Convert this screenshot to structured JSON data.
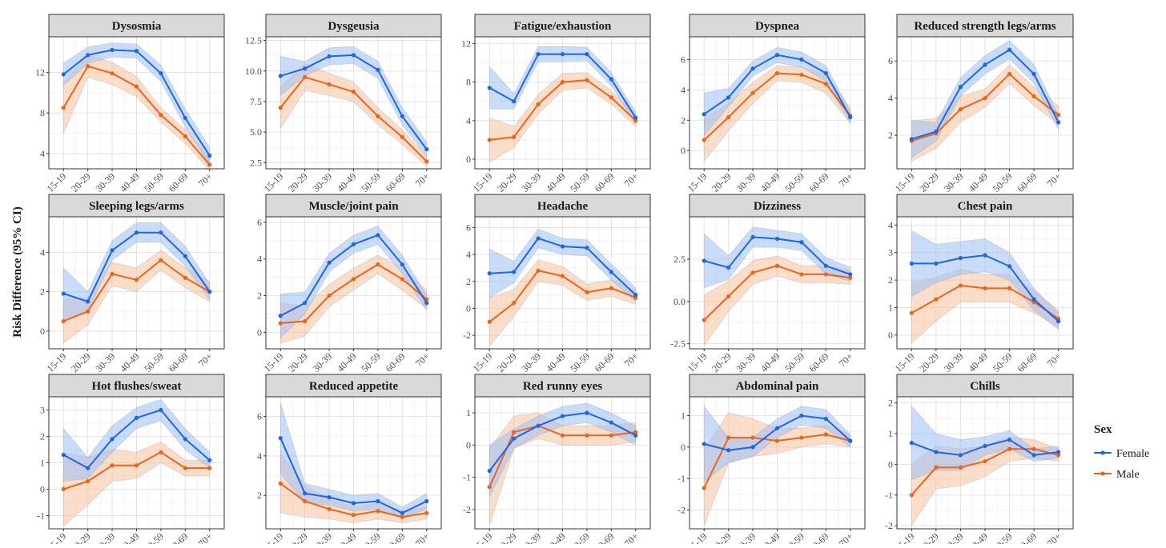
{
  "chart_data": {
    "type": "line",
    "ylabel": "Risk Difference (95% CI)",
    "categories": [
      "15-19",
      "20-29",
      "30-39",
      "40-49",
      "50-59",
      "60-69",
      "70+"
    ],
    "legend": {
      "title": "Sex",
      "placement": "right",
      "entries": [
        {
          "name": "Female",
          "color": "#1f66e0",
          "band_color": "#9dc0f5"
        },
        {
          "name": "Male",
          "color": "#e8651d",
          "band_color": "#f7c39f"
        }
      ]
    },
    "grid": true,
    "panels": [
      {
        "title": "Dysosmia",
        "ylim": [
          2.5,
          15.5
        ],
        "yticks": [
          4,
          8,
          12
        ],
        "female": {
          "values": [
            11.8,
            13.7,
            14.2,
            14.1,
            11.9,
            7.5,
            3.8
          ],
          "lower": [
            10.7,
            12.9,
            13.5,
            13.4,
            11.1,
            6.6,
            3.0
          ],
          "upper": [
            12.9,
            14.5,
            14.9,
            14.8,
            12.7,
            8.4,
            4.6
          ]
        },
        "male": {
          "values": [
            8.5,
            12.6,
            11.9,
            10.6,
            7.8,
            5.7,
            2.9
          ],
          "lower": [
            6.0,
            11.5,
            10.8,
            9.6,
            7.1,
            5.0,
            2.3
          ],
          "upper": [
            11.0,
            13.7,
            13.0,
            11.6,
            8.5,
            6.4,
            3.5
          ]
        }
      },
      {
        "title": "Dysgeusia",
        "ylim": [
          2.0,
          12.8
        ],
        "yticks": [
          2.5,
          5.0,
          7.5,
          10.0,
          12.5
        ],
        "female": {
          "values": [
            9.6,
            10.2,
            11.2,
            11.3,
            10.1,
            6.3,
            3.6
          ],
          "lower": [
            8.0,
            9.6,
            10.5,
            10.6,
            9.4,
            5.6,
            3.0
          ],
          "upper": [
            11.2,
            10.8,
            11.9,
            12.0,
            10.8,
            7.0,
            4.2
          ]
        },
        "male": {
          "values": [
            7.0,
            9.5,
            8.9,
            8.3,
            6.3,
            4.6,
            2.6
          ],
          "lower": [
            5.3,
            8.4,
            8.0,
            7.5,
            5.6,
            4.0,
            2.2
          ],
          "upper": [
            8.7,
            10.6,
            9.8,
            9.1,
            7.0,
            5.2,
            3.0
          ]
        }
      },
      {
        "title": "Fatigue/exhaustion",
        "ylim": [
          -1.0,
          12.7
        ],
        "yticks": [
          0,
          4,
          8,
          12
        ],
        "female": {
          "values": [
            7.4,
            6.0,
            10.9,
            10.9,
            10.9,
            8.3,
            4.3
          ],
          "lower": [
            5.2,
            5.2,
            10.1,
            10.1,
            10.2,
            7.6,
            3.7
          ],
          "upper": [
            9.6,
            6.8,
            11.7,
            11.7,
            11.6,
            9.0,
            4.9
          ]
        },
        "male": {
          "values": [
            2.0,
            2.3,
            5.7,
            8.0,
            8.2,
            6.4,
            4.0
          ],
          "lower": [
            -0.3,
            1.2,
            4.7,
            7.1,
            7.4,
            5.7,
            3.4
          ],
          "upper": [
            4.3,
            3.4,
            6.7,
            8.9,
            9.0,
            7.1,
            4.6
          ]
        }
      },
      {
        "title": "Dyspnea",
        "ylim": [
          -1.2,
          7.5
        ],
        "yticks": [
          0,
          2,
          4,
          6
        ],
        "female": {
          "values": [
            2.4,
            3.5,
            5.4,
            6.3,
            6.0,
            5.1,
            2.2
          ],
          "lower": [
            1.0,
            2.9,
            4.9,
            5.8,
            5.5,
            4.6,
            1.8
          ],
          "upper": [
            3.8,
            4.1,
            5.9,
            6.8,
            6.5,
            5.6,
            2.6
          ]
        },
        "male": {
          "values": [
            0.7,
            2.2,
            3.8,
            5.1,
            5.0,
            4.4,
            2.3
          ],
          "lower": [
            -0.7,
            1.3,
            3.1,
            4.6,
            4.5,
            3.8,
            1.8
          ],
          "upper": [
            2.1,
            3.1,
            4.5,
            5.6,
            5.5,
            5.0,
            2.8
          ]
        }
      },
      {
        "title": "Reduced strength legs/arms",
        "ylim": [
          0.2,
          7.3
        ],
        "yticks": [
          2,
          4,
          6
        ],
        "female": {
          "values": [
            1.8,
            2.2,
            4.6,
            5.8,
            6.6,
            5.3,
            2.7
          ],
          "lower": [
            0.8,
            1.7,
            4.1,
            5.3,
            6.1,
            4.8,
            2.3
          ],
          "upper": [
            2.8,
            2.7,
            5.1,
            6.3,
            7.1,
            5.8,
            3.1
          ]
        },
        "male": {
          "values": [
            1.7,
            2.1,
            3.4,
            4.0,
            5.3,
            4.1,
            3.1
          ],
          "lower": [
            0.6,
            1.3,
            2.7,
            3.5,
            4.8,
            3.6,
            2.6
          ],
          "upper": [
            2.8,
            2.9,
            4.1,
            4.5,
            5.8,
            4.6,
            3.6
          ]
        }
      },
      {
        "title": "Sleeping legs/arms",
        "ylim": [
          -0.9,
          5.8
        ],
        "yticks": [
          0,
          2,
          4
        ],
        "female": {
          "values": [
            1.9,
            1.5,
            4.1,
            5.0,
            5.0,
            3.8,
            2.0
          ],
          "lower": [
            0.6,
            1.0,
            3.6,
            4.5,
            4.5,
            3.3,
            1.6
          ],
          "upper": [
            3.2,
            2.0,
            4.6,
            5.5,
            5.5,
            4.3,
            2.4
          ]
        },
        "male": {
          "values": [
            0.5,
            1.0,
            2.9,
            2.6,
            3.6,
            2.7,
            2.0
          ],
          "lower": [
            -0.6,
            0.3,
            2.3,
            2.0,
            3.1,
            2.2,
            1.5
          ],
          "upper": [
            1.6,
            1.7,
            3.5,
            3.2,
            4.1,
            3.2,
            2.5
          ]
        }
      },
      {
        "title": "Muscle/joint pain",
        "ylim": [
          -0.9,
          6.3
        ],
        "yticks": [
          0,
          2,
          4,
          6
        ],
        "female": {
          "values": [
            0.9,
            1.6,
            3.8,
            4.8,
            5.3,
            3.7,
            1.6
          ],
          "lower": [
            -0.3,
            1.0,
            3.3,
            4.3,
            4.8,
            3.2,
            1.2
          ],
          "upper": [
            2.1,
            2.2,
            4.3,
            5.3,
            5.8,
            4.2,
            2.0
          ]
        },
        "male": {
          "values": [
            0.5,
            0.6,
            2.0,
            2.9,
            3.7,
            2.9,
            1.8
          ],
          "lower": [
            -0.6,
            -0.2,
            1.4,
            2.3,
            3.2,
            2.3,
            1.3
          ],
          "upper": [
            1.6,
            1.4,
            2.6,
            3.5,
            4.2,
            3.5,
            2.3
          ]
        }
      },
      {
        "title": "Headache",
        "ylim": [
          -3.0,
          6.8
        ],
        "yticks": [
          -2,
          0,
          2,
          4,
          6
        ],
        "female": {
          "values": [
            2.6,
            2.7,
            5.2,
            4.6,
            4.5,
            2.7,
            1.0
          ],
          "lower": [
            0.8,
            1.9,
            4.5,
            4.0,
            3.9,
            2.1,
            0.5
          ],
          "upper": [
            4.4,
            3.5,
            5.9,
            5.2,
            5.1,
            3.3,
            1.5
          ]
        },
        "male": {
          "values": [
            -1.0,
            0.4,
            2.8,
            2.4,
            1.2,
            1.5,
            0.8
          ],
          "lower": [
            -2.8,
            -0.6,
            2.0,
            1.7,
            0.6,
            0.9,
            0.3
          ],
          "upper": [
            0.8,
            1.4,
            3.6,
            3.1,
            1.8,
            2.1,
            1.3
          ]
        }
      },
      {
        "title": "Dizziness",
        "ylim": [
          -2.8,
          5.0
        ],
        "yticks": [
          -2.5,
          0.0,
          2.5
        ],
        "female": {
          "values": [
            2.4,
            2.0,
            3.8,
            3.7,
            3.5,
            2.1,
            1.6
          ],
          "lower": [
            0.8,
            1.3,
            3.2,
            3.2,
            3.0,
            1.6,
            1.2
          ],
          "upper": [
            4.0,
            2.7,
            4.4,
            4.2,
            4.0,
            2.6,
            2.0
          ]
        },
        "male": {
          "values": [
            -1.1,
            0.3,
            1.7,
            2.1,
            1.6,
            1.6,
            1.4
          ],
          "lower": [
            -2.6,
            -0.6,
            1.0,
            1.5,
            1.1,
            1.1,
            1.0
          ],
          "upper": [
            0.4,
            1.2,
            2.4,
            2.7,
            2.1,
            2.1,
            1.8
          ]
        }
      },
      {
        "title": "Chest pain",
        "ylim": [
          -0.5,
          4.3
        ],
        "yticks": [
          0,
          1,
          2,
          3,
          4
        ],
        "female": {
          "values": [
            2.6,
            2.6,
            2.8,
            2.9,
            2.5,
            1.3,
            0.5
          ],
          "lower": [
            1.4,
            1.9,
            2.2,
            2.3,
            2.0,
            0.9,
            0.2
          ],
          "upper": [
            3.8,
            3.3,
            3.4,
            3.5,
            3.0,
            1.7,
            0.8
          ]
        },
        "male": {
          "values": [
            0.8,
            1.3,
            1.8,
            1.7,
            1.7,
            1.2,
            0.6
          ],
          "lower": [
            -0.3,
            0.5,
            1.2,
            1.2,
            1.2,
            0.8,
            0.3
          ],
          "upper": [
            1.9,
            2.1,
            2.4,
            2.2,
            2.2,
            1.6,
            0.9
          ]
        }
      },
      {
        "title": "Hot flushes/sweat",
        "ylim": [
          -1.5,
          3.5
        ],
        "yticks": [
          -1,
          0,
          1,
          2,
          3
        ],
        "female": {
          "values": [
            1.3,
            0.8,
            1.9,
            2.7,
            3.0,
            1.9,
            1.1
          ],
          "lower": [
            0.3,
            0.4,
            1.4,
            2.3,
            2.6,
            1.5,
            0.8
          ],
          "upper": [
            2.3,
            1.2,
            2.4,
            3.1,
            3.4,
            2.3,
            1.4
          ]
        },
        "male": {
          "values": [
            0.0,
            0.3,
            0.9,
            0.9,
            1.4,
            0.8,
            0.8
          ],
          "lower": [
            -1.4,
            -0.6,
            0.3,
            0.4,
            1.0,
            0.5,
            0.5
          ],
          "upper": [
            1.4,
            1.2,
            1.5,
            1.4,
            1.8,
            1.1,
            1.1
          ]
        }
      },
      {
        "title": "Reduced appetite",
        "ylim": [
          0.3,
          7.0
        ],
        "yticks": [
          2,
          4,
          6
        ],
        "female": {
          "values": [
            4.9,
            2.1,
            1.9,
            1.6,
            1.7,
            1.1,
            1.7
          ],
          "lower": [
            3.1,
            1.6,
            1.5,
            1.2,
            1.3,
            0.8,
            1.3
          ],
          "upper": [
            6.7,
            2.6,
            2.3,
            2.0,
            2.1,
            1.4,
            2.1
          ]
        },
        "male": {
          "values": [
            2.6,
            1.7,
            1.3,
            1.0,
            1.2,
            0.9,
            1.1
          ],
          "lower": [
            1.1,
            0.9,
            0.8,
            0.6,
            0.8,
            0.6,
            0.8
          ],
          "upper": [
            4.1,
            2.5,
            1.8,
            1.4,
            1.6,
            1.2,
            1.4
          ]
        }
      },
      {
        "title": "Red runny eyes",
        "ylim": [
          -2.6,
          1.5
        ],
        "yticks": [
          -2,
          -1,
          0,
          1
        ],
        "female": {
          "values": [
            -0.8,
            0.2,
            0.6,
            0.9,
            1.0,
            0.7,
            0.3
          ],
          "lower": [
            -1.6,
            -0.1,
            0.3,
            0.6,
            0.7,
            0.4,
            0.0
          ],
          "upper": [
            0.0,
            0.5,
            0.9,
            1.2,
            1.3,
            1.0,
            0.6
          ]
        },
        "male": {
          "values": [
            -1.3,
            0.4,
            0.6,
            0.3,
            0.3,
            0.3,
            0.4
          ],
          "lower": [
            -2.5,
            -0.1,
            0.2,
            0.0,
            0.0,
            0.0,
            0.1
          ],
          "upper": [
            -0.1,
            0.9,
            1.0,
            0.6,
            0.6,
            0.6,
            0.7
          ]
        }
      },
      {
        "title": "Abdominal pain",
        "ylim": [
          -2.6,
          1.6
        ],
        "yticks": [
          -2,
          -1,
          0,
          1
        ],
        "female": {
          "values": [
            0.1,
            -0.1,
            0.0,
            0.6,
            1.0,
            0.9,
            0.2
          ],
          "lower": [
            -1.1,
            -0.5,
            -0.3,
            0.3,
            0.7,
            0.6,
            0.0
          ],
          "upper": [
            1.3,
            0.3,
            0.3,
            0.9,
            1.3,
            1.2,
            0.4
          ]
        },
        "male": {
          "values": [
            -1.3,
            0.3,
            0.3,
            0.2,
            0.3,
            0.4,
            0.2
          ],
          "lower": [
            -2.5,
            -0.5,
            -0.3,
            -0.2,
            0.0,
            0.1,
            0.0
          ],
          "upper": [
            -0.1,
            1.1,
            0.9,
            0.6,
            0.6,
            0.7,
            0.4
          ]
        }
      },
      {
        "title": "Chills",
        "ylim": [
          -2.1,
          2.2
        ],
        "yticks": [
          -2,
          -1,
          0,
          1,
          2
        ],
        "female": {
          "values": [
            0.7,
            0.4,
            0.3,
            0.6,
            0.8,
            0.3,
            0.4
          ],
          "lower": [
            -0.5,
            -0.2,
            -0.2,
            0.3,
            0.5,
            0.1,
            0.2
          ],
          "upper": [
            1.9,
            1.0,
            0.8,
            0.9,
            1.1,
            0.5,
            0.6
          ]
        },
        "male": {
          "values": [
            -1.0,
            -0.1,
            -0.1,
            0.1,
            0.5,
            0.5,
            0.3
          ],
          "lower": [
            -2.0,
            -0.8,
            -0.7,
            -0.4,
            0.1,
            0.2,
            0.1
          ],
          "upper": [
            0.0,
            0.6,
            0.5,
            0.6,
            0.9,
            0.8,
            0.5
          ]
        }
      }
    ]
  }
}
